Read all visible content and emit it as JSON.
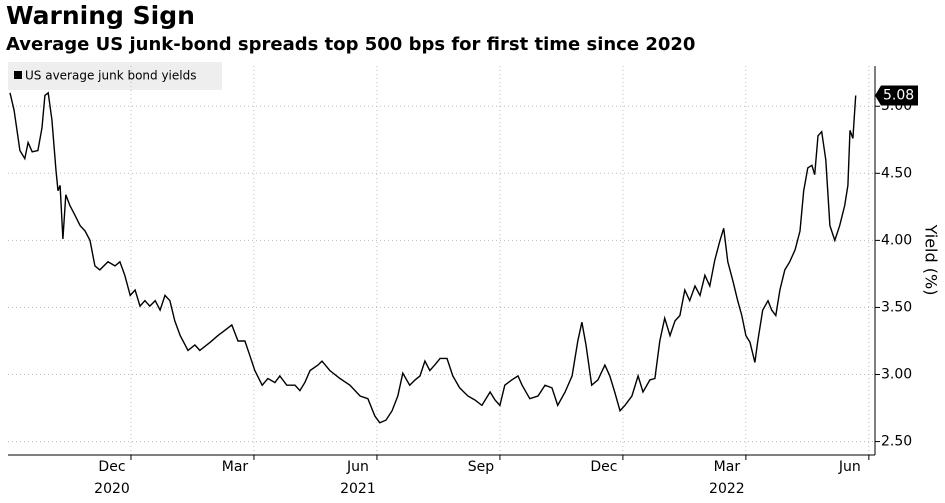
{
  "chart_data": {
    "type": "line",
    "title": "Warning Sign",
    "subtitle": "Average US junk-bond spreads top 500 bps for first time since 2020",
    "y_label": "Yield (%)",
    "legend_position": "upper left",
    "grid": true,
    "xlim": [
      0,
      21.15
    ],
    "xticks": [
      {
        "value": 3,
        "label": "Dec"
      },
      {
        "value": 6,
        "label": "Mar"
      },
      {
        "value": 9,
        "label": "Jun"
      },
      {
        "value": 12,
        "label": "Sep"
      },
      {
        "value": 15,
        "label": "Dec"
      },
      {
        "value": 18,
        "label": "Mar"
      },
      {
        "value": 21,
        "label": "Jun"
      }
    ],
    "x_year_labels": [
      {
        "value": 3,
        "label": "2020"
      },
      {
        "value": 9,
        "label": "2021"
      },
      {
        "value": 18,
        "label": "2022"
      }
    ],
    "ylim": [
      2.4,
      5.3
    ],
    "yticks": [
      {
        "value": 2.5,
        "label": "2.50"
      },
      {
        "value": 3,
        "label": "3.00"
      },
      {
        "value": 3.5,
        "label": "3.50"
      },
      {
        "value": 4,
        "label": "4.00"
      },
      {
        "value": 4.5,
        "label": "4.50"
      },
      {
        "value": 5,
        "label": "5.00"
      }
    ],
    "x": [
      0.05,
      0.15,
      0.29,
      0.41,
      0.49,
      0.59,
      0.73,
      0.83,
      0.9,
      0.98,
      1.07,
      1.17,
      1.22,
      1.27,
      1.34,
      1.41,
      1.51,
      1.63,
      1.76,
      1.88,
      2.0,
      2.12,
      2.24,
      2.44,
      2.61,
      2.73,
      2.85,
      2.98,
      3.1,
      3.22,
      3.34,
      3.46,
      3.59,
      3.71,
      3.83,
      3.95,
      4.07,
      4.2,
      4.39,
      4.56,
      4.68,
      4.93,
      5.12,
      5.29,
      5.46,
      5.61,
      5.78,
      5.9,
      6.02,
      6.2,
      6.34,
      6.51,
      6.63,
      6.8,
      7.0,
      7.12,
      7.24,
      7.37,
      7.56,
      7.66,
      7.85,
      8.1,
      8.34,
      8.59,
      8.78,
      8.95,
      9.07,
      9.22,
      9.37,
      9.51,
      9.63,
      9.8,
      9.93,
      10.05,
      10.17,
      10.29,
      10.41,
      10.54,
      10.71,
      10.85,
      11.02,
      11.22,
      11.39,
      11.56,
      11.76,
      11.88,
      12.0,
      12.12,
      12.29,
      12.44,
      12.54,
      12.73,
      12.93,
      13.1,
      13.27,
      13.41,
      13.59,
      13.76,
      13.9,
      14.0,
      14.1,
      14.24,
      14.39,
      14.56,
      14.68,
      14.8,
      14.93,
      15.05,
      15.22,
      15.37,
      15.49,
      15.66,
      15.78,
      15.9,
      16.02,
      16.15,
      16.27,
      16.39,
      16.51,
      16.63,
      16.76,
      16.88,
      17.0,
      17.12,
      17.24,
      17.37,
      17.46,
      17.56,
      17.68,
      17.8,
      17.9,
      18.0,
      18.1,
      18.22,
      18.29,
      18.41,
      18.54,
      18.63,
      18.73,
      18.83,
      18.95,
      19.07,
      19.2,
      19.32,
      19.41,
      19.51,
      19.61,
      19.68,
      19.76,
      19.85,
      19.95,
      20.05,
      20.17,
      20.29,
      20.41,
      20.49,
      20.54,
      20.61,
      20.68
    ],
    "series": [
      {
        "name": "US average junk bond yields",
        "color": "#000000",
        "values": [
          5.1,
          4.97,
          4.67,
          4.61,
          4.73,
          4.66,
          4.67,
          4.84,
          5.08,
          5.1,
          4.9,
          4.52,
          4.37,
          4.41,
          4.01,
          4.34,
          4.26,
          4.19,
          4.11,
          4.07,
          4.0,
          3.81,
          3.78,
          3.84,
          3.81,
          3.84,
          3.74,
          3.59,
          3.63,
          3.51,
          3.55,
          3.51,
          3.55,
          3.48,
          3.59,
          3.55,
          3.4,
          3.29,
          3.18,
          3.22,
          3.18,
          3.24,
          3.29,
          3.33,
          3.37,
          3.25,
          3.25,
          3.14,
          3.03,
          2.92,
          2.97,
          2.94,
          2.99,
          2.92,
          2.92,
          2.88,
          2.94,
          3.03,
          3.07,
          3.1,
          3.03,
          2.97,
          2.92,
          2.84,
          2.82,
          2.69,
          2.64,
          2.66,
          2.73,
          2.84,
          3.01,
          2.92,
          2.96,
          2.99,
          3.1,
          3.03,
          3.07,
          3.12,
          3.12,
          2.99,
          2.9,
          2.84,
          2.81,
          2.77,
          2.87,
          2.81,
          2.77,
          2.92,
          2.96,
          2.99,
          2.92,
          2.82,
          2.84,
          2.92,
          2.9,
          2.77,
          2.87,
          2.99,
          3.25,
          3.39,
          3.22,
          2.92,
          2.96,
          3.07,
          2.99,
          2.87,
          2.73,
          2.77,
          2.84,
          2.99,
          2.87,
          2.96,
          2.97,
          3.25,
          3.42,
          3.29,
          3.4,
          3.44,
          3.63,
          3.55,
          3.66,
          3.59,
          3.74,
          3.66,
          3.85,
          4.0,
          4.09,
          3.84,
          3.7,
          3.55,
          3.44,
          3.29,
          3.24,
          3.09,
          3.25,
          3.48,
          3.55,
          3.48,
          3.44,
          3.63,
          3.78,
          3.84,
          3.93,
          4.07,
          4.37,
          4.54,
          4.56,
          4.49,
          4.78,
          4.81,
          4.6,
          4.11,
          4.0,
          4.11,
          4.26,
          4.41,
          4.82,
          4.76,
          5.08
        ]
      }
    ]
  }
}
